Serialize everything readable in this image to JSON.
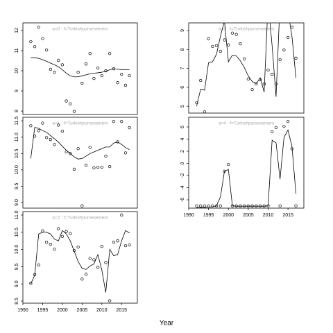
{
  "xlabel": "Year",
  "chart_data": [
    {
      "type": "scatter-smooth",
      "title": "a=0 : f=Turkishpurseseiners",
      "x": [
        1992,
        1993,
        1994,
        1995,
        1996,
        1997,
        1998,
        1999,
        2000,
        2001,
        2002,
        2003,
        2004,
        2005,
        2006,
        2007,
        2008,
        2009,
        2010,
        2011,
        2012,
        2013,
        2014,
        2015,
        2016,
        2017
      ],
      "points": [
        11.45,
        11.2,
        12.17,
        11.6,
        11.03,
        10.07,
        9.93,
        10.52,
        10.3,
        8.5,
        8.36,
        7.98,
        9.93,
        9.38,
        10.34,
        10.86,
        9.62,
        10.14,
        9.76,
        10.0,
        10.86,
        10.1,
        9.41,
        9.83,
        9.28,
        9.76
      ],
      "fit": [
        10.65,
        10.65,
        10.62,
        10.55,
        10.47,
        10.38,
        10.3,
        10.2,
        10.05,
        9.88,
        9.75,
        9.7,
        9.7,
        9.75,
        9.8,
        9.85,
        9.88,
        9.9,
        9.93,
        9.98,
        10.05,
        10.1,
        10.08,
        10.06,
        10.05,
        10.05
      ],
      "xlim": [
        1990,
        2019
      ],
      "ylim": [
        7.83,
        12.38
      ],
      "yticks": [
        8,
        9,
        10,
        11,
        12
      ],
      "color": "#000000"
    },
    {
      "type": "scatter-smooth",
      "title": "a=1 : f=Turkishpurseseiners",
      "x": [
        1992,
        1993,
        1994,
        1995,
        1996,
        1997,
        1998,
        1999,
        2000,
        2001,
        2002,
        2003,
        2004,
        2005,
        2006,
        2007,
        2008,
        2009,
        2010,
        2011,
        2012,
        2013,
        2014,
        2015,
        2016,
        2017
      ],
      "points": [
        11.35,
        11.03,
        11.2,
        11.43,
        10.99,
        10.93,
        10.78,
        11.37,
        11.18,
        10.55,
        10.5,
        10.02,
        10.65,
        8.9,
        10.14,
        10.69,
        10.06,
        10.08,
        10.08,
        10.42,
        10.1,
        11.48,
        10.86,
        11.48,
        10.52,
        11.29
      ],
      "fit": [
        10.35,
        11.3,
        11.27,
        11.2,
        11.15,
        11.05,
        10.95,
        10.85,
        10.72,
        10.6,
        10.5,
        10.4,
        10.33,
        10.35,
        10.42,
        10.5,
        10.55,
        10.6,
        10.65,
        10.7,
        10.7,
        10.82,
        10.85,
        10.78,
        10.68,
        10.62
      ],
      "xlim": [
        1990,
        2019
      ],
      "ylim": [
        8.83,
        11.61
      ],
      "yticks": [
        {
          "value": 9,
          "label": "9.0"
        },
        9.5,
        {
          "value": 10,
          "label": "10.0"
        },
        10.5,
        {
          "value": 11,
          "label": "11.0"
        },
        11.5
      ],
      "color": "#000000"
    },
    {
      "type": "scatter-smooth",
      "title": "a=2 : f=Turkishpurseseiners",
      "x": [
        1992,
        1993,
        1994,
        1995,
        1996,
        1997,
        1998,
        1999,
        2000,
        2001,
        2002,
        2003,
        2004,
        2005,
        2006,
        2007,
        2008,
        2009,
        2010,
        2011,
        2012,
        2013,
        2014,
        2015,
        2016,
        2017
      ],
      "points": [
        9.02,
        9.27,
        9.55,
        10.54,
        10.21,
        10.15,
        10.01,
        10.6,
        10.38,
        10.52,
        10.46,
        9.97,
        10.07,
        9.14,
        9.28,
        9.74,
        9.7,
        9.48,
        10.09,
        9.62,
        8.51,
        10.21,
        10.25,
        11.0,
        10.11,
        10.13
      ],
      "fit": [
        9.0,
        9.25,
        10.45,
        10.5,
        10.5,
        10.45,
        10.3,
        10.25,
        10.55,
        10.45,
        10.25,
        9.95,
        9.65,
        9.45,
        9.42,
        9.52,
        9.58,
        9.85,
        9.4,
        8.75,
        10.0,
        9.82,
        9.85,
        10.25,
        10.55,
        10.48
      ],
      "xlim": [
        1990,
        2019
      ],
      "ylim": [
        8.44,
        11.1
      ],
      "yticks": [
        8.5,
        {
          "value": 9,
          "label": "9.0"
        },
        9.5,
        {
          "value": 10,
          "label": "10.0"
        },
        10.5,
        {
          "value": 11,
          "label": "11.0"
        }
      ],
      "xticks": [
        1990,
        1995,
        2000,
        2005,
        2010,
        2015
      ],
      "color": "#000000"
    },
    {
      "type": "scatter-smooth",
      "title": "a=3 : f=Turkishpurseseiners",
      "x": [
        1992,
        1993,
        1994,
        1995,
        1996,
        1997,
        1998,
        1999,
        2000,
        2001,
        2002,
        2003,
        2004,
        2005,
        2006,
        2007,
        2008,
        2009,
        2010,
        2011,
        2012,
        2013,
        2014,
        2015,
        2016,
        2017
      ],
      "points": [
        5.19,
        6.36,
        4.71,
        8.56,
        8.16,
        8.2,
        7.9,
        8.5,
        8.24,
        8.86,
        8.79,
        8.3,
        7.5,
        6.44,
        5.88,
        6.18,
        6.4,
        6.18,
        6.91,
        6.69,
        6.18,
        7.46,
        7.97,
        8.63,
        9.18,
        7.54
      ],
      "fit": [
        5.0,
        5.9,
        5.85,
        7.3,
        7.35,
        7.75,
        8.7,
        9.5,
        7.35,
        7.7,
        7.65,
        7.4,
        7.05,
        6.6,
        6.3,
        6.2,
        6.5,
        5.75,
        10.5,
        8.2,
        5.5,
        10.5,
        11,
        10,
        8.7,
        6.5
      ],
      "xlim": [
        1990,
        2019
      ],
      "ylim": [
        4.64,
        9.4
      ],
      "yticks": [
        5,
        6,
        7,
        8,
        9
      ],
      "color": "#000000"
    },
    {
      "type": "scatter-smooth",
      "title": "a=4 : f=Turkishpurseseiners",
      "x": [
        1992,
        1993,
        1994,
        1995,
        1996,
        1997,
        1998,
        1999,
        2000,
        2001,
        2002,
        2003,
        2004,
        2005,
        2006,
        2007,
        2008,
        2009,
        2010,
        2011,
        2012,
        2013,
        2014,
        2015,
        2016,
        2017
      ],
      "points": [
        -7.0,
        -7.0,
        -7.0,
        -7.0,
        -7.0,
        -7.0,
        -7.0,
        -1.3,
        -0.17,
        -7.0,
        -7.0,
        -7.0,
        -7.0,
        -7.0,
        -7.0,
        -7.0,
        -7.0,
        -7.0,
        -7.0,
        5.2,
        5.9,
        -7.0,
        6.1,
        6.9,
        2.4,
        -7.0
      ],
      "fit": [
        -7.3,
        -7.28,
        -7.25,
        -7.2,
        -7.15,
        -7.0,
        -5.5,
        -1.3,
        -1.0,
        -7.0,
        -7.05,
        -7.05,
        -7.05,
        -7.05,
        -7.05,
        -7.05,
        -7.05,
        -7.05,
        -7.0,
        3.8,
        3.4,
        -2.6,
        4.3,
        5.5,
        2.8,
        -5.0
      ],
      "xlim": [
        1990,
        2019
      ],
      "ylim": [
        -7.37,
        7.6
      ],
      "yticks": [
        -6,
        -4,
        -2,
        0,
        2,
        4,
        6
      ],
      "xticks": [
        1990,
        1995,
        2000,
        2005,
        2010,
        2015
      ],
      "color": "#000000"
    }
  ]
}
